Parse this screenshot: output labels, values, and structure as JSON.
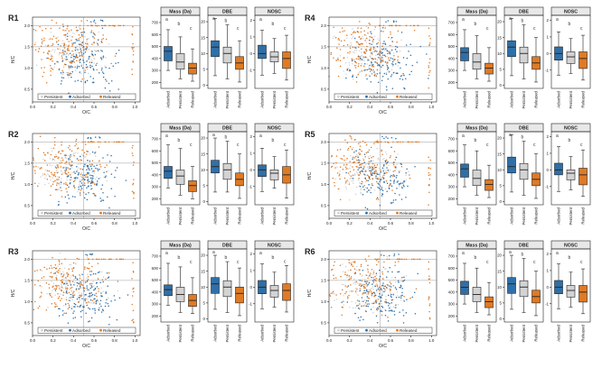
{
  "chart_data": {
    "type": "scatter+box",
    "colors": {
      "Adsorbed": "#2f6fa8",
      "Persistent": "#d3d3d3",
      "Released": "#e07a24"
    },
    "scatter_common": {
      "xlabel": "O/C",
      "ylabel": "H/C",
      "xticks": [
        "0.0",
        "0.2",
        "0.4",
        "0.6",
        "0.8",
        "1.0"
      ],
      "yticks": [
        "0.5",
        "1.0",
        "1.5",
        "2.0"
      ],
      "xlim": [
        0,
        1.05
      ],
      "ylim": [
        0.2,
        2.2
      ],
      "legend": [
        "Persistent",
        "Adsorbed",
        "Released"
      ]
    },
    "box_common": {
      "categories": [
        "Adsorbed",
        "Persistent",
        "Released"
      ],
      "letters": [
        "a",
        "b",
        "c"
      ],
      "panels": [
        {
          "title": "Mass (Da)",
          "yticks": [
            "200",
            "300",
            "400",
            "500",
            "600",
            "700"
          ],
          "ylim": [
            150,
            760
          ]
        },
        {
          "title": "DBE",
          "yticks": [
            "0",
            "5",
            "10",
            "15",
            "20"
          ],
          "ylim": [
            -1,
            22
          ]
        },
        {
          "title": "NOSC",
          "yticks": [
            "-1",
            "0",
            "1",
            "2"
          ],
          "ylim": [
            -2.1,
            2.3
          ]
        }
      ]
    },
    "regions": [
      {
        "name": "R1",
        "boxes": [
          [
            [
              300,
              380,
              460,
              500,
              640
            ],
            [
              230,
              310,
              370,
              440,
              580
            ],
            [
              210,
              270,
              320,
              360,
              480
            ]
          ],
          [
            [
              3,
              9,
              12,
              14,
              21
            ],
            [
              2,
              7,
              10,
              12,
              19
            ],
            [
              1,
              5,
              7,
              9,
              14
            ]
          ],
          [
            [
              -1.3,
              -0.3,
              0.0,
              0.5,
              1.4
            ],
            [
              -1.2,
              -0.5,
              -0.2,
              0.1,
              0.9
            ],
            [
              -1.6,
              -0.9,
              -0.3,
              0.1,
              1.1
            ]
          ]
        ]
      },
      {
        "name": "R2",
        "boxes": [
          [
            [
              290,
              370,
              430,
              470,
              650
            ],
            [
              230,
              320,
              390,
              440,
              620
            ],
            [
              200,
              260,
              310,
              350,
              470
            ]
          ],
          [
            [
              3,
              9,
              11,
              13,
              20
            ],
            [
              3,
              7,
              10,
              12,
              19
            ],
            [
              1,
              5,
              7,
              9,
              15
            ]
          ],
          [
            [
              -1.3,
              -0.4,
              0.0,
              0.3,
              1.3
            ],
            [
              -1.1,
              -0.6,
              -0.2,
              0.0,
              0.8
            ],
            [
              -1.7,
              -0.8,
              -0.3,
              0.2,
              1.2
            ]
          ]
        ]
      },
      {
        "name": "R3",
        "boxes": [
          [
            [
              290,
              370,
              420,
              460,
              640
            ],
            [
              230,
              320,
              380,
              440,
              610
            ],
            [
              220,
              280,
              330,
              380,
              520
            ]
          ],
          [
            [
              3,
              8,
              11,
              13,
              20
            ],
            [
              2,
              7,
              10,
              12,
              18
            ],
            [
              1,
              5,
              8,
              10,
              16
            ]
          ],
          [
            [
              -1.3,
              -0.4,
              0.0,
              0.4,
              1.4
            ],
            [
              -1.2,
              -0.6,
              -0.2,
              0.1,
              0.9
            ],
            [
              -1.5,
              -0.8,
              -0.2,
              0.2,
              1.3
            ]
          ]
        ]
      },
      {
        "name": "R4",
        "boxes": [
          [
            [
              300,
              380,
              450,
              490,
              640
            ],
            [
              230,
              310,
              370,
              440,
              590
            ],
            [
              210,
              270,
              320,
              360,
              490
            ]
          ],
          [
            [
              3,
              9,
              12,
              14,
              21
            ],
            [
              2,
              7,
              10,
              12,
              19
            ],
            [
              1,
              5,
              7,
              9,
              15
            ]
          ],
          [
            [
              -1.3,
              -0.4,
              0.0,
              0.4,
              1.3
            ],
            [
              -1.2,
              -0.6,
              -0.2,
              0.1,
              0.9
            ],
            [
              -1.6,
              -0.9,
              -0.3,
              0.1,
              1.1
            ]
          ]
        ]
      },
      {
        "name": "R5",
        "boxes": [
          [
            [
              300,
              380,
              450,
              490,
              650
            ],
            [
              230,
              310,
              370,
              440,
              600
            ],
            [
              210,
              270,
              320,
              360,
              480
            ]
          ],
          [
            [
              3,
              9,
              11,
              14,
              21
            ],
            [
              2,
              7,
              10,
              12,
              19
            ],
            [
              1,
              5,
              7,
              9,
              15
            ]
          ],
          [
            [
              -1.3,
              -0.3,
              0.0,
              0.4,
              1.4
            ],
            [
              -1.2,
              -0.6,
              -0.2,
              0.0,
              0.8
            ],
            [
              -1.6,
              -0.9,
              -0.3,
              0.1,
              1.2
            ]
          ]
        ]
      },
      {
        "name": "R6",
        "boxes": [
          [
            [
              300,
              380,
              440,
              490,
              640
            ],
            [
              230,
              320,
              380,
              440,
              600
            ],
            [
              210,
              270,
              320,
              360,
              480
            ]
          ],
          [
            [
              3,
              8,
              11,
              13,
              20
            ],
            [
              2,
              7,
              10,
              12,
              19
            ],
            [
              1,
              5,
              7,
              9,
              15
            ]
          ],
          [
            [
              -1.3,
              -0.4,
              0.0,
              0.4,
              1.4
            ],
            [
              -1.2,
              -0.6,
              -0.2,
              0.1,
              0.9
            ],
            [
              -1.6,
              -0.9,
              -0.3,
              0.1,
              1.1
            ]
          ]
        ]
      }
    ]
  }
}
